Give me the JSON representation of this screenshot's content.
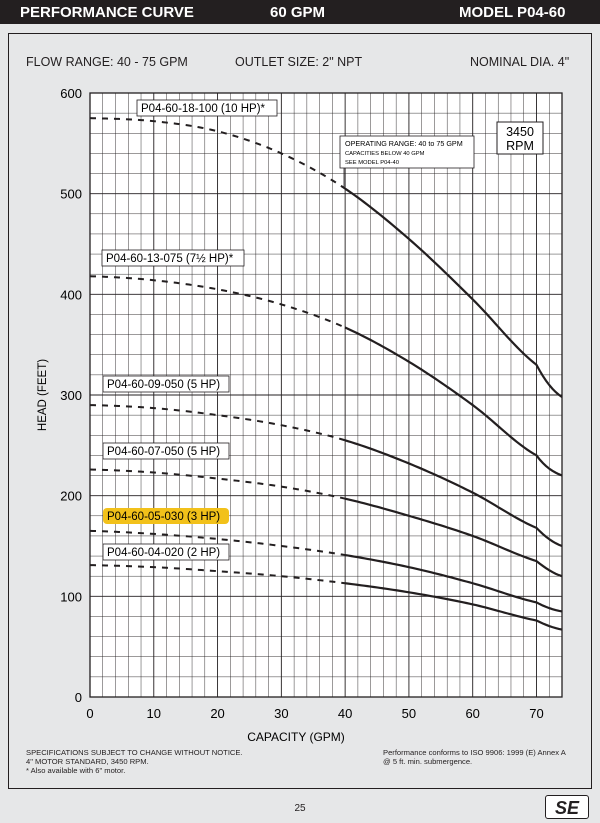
{
  "header": {
    "left": "PERFORMANCE CURVE",
    "center": "60 GPM",
    "right": "MODEL  P04-60"
  },
  "specs": {
    "flow_range": "FLOW RANGE: 40 - 75 GPM",
    "outlet_size": "OUTLET SIZE: 2\" NPT",
    "nominal_dia": "NOMINAL DIA. 4\""
  },
  "rpm_box": {
    "line1": "3450",
    "line2": "RPM"
  },
  "operating_note": [
    "OPERATING RANGE: 40 to 75 GPM",
    "CAPACITIES BELOW 40 GPM",
    "SEE MODEL P04-40"
  ],
  "footer": {
    "left": "SPECIFICATIONS SUBJECT TO CHANGE WITHOUT NOTICE.\n4\" MOTOR STANDARD, 3450 RPM.\n* Also available with 6\" motor.",
    "right": "Performance conforms to ISO 9906: 1999 (E) Annex A\n@ 5 ft. min. submergence.",
    "page_number": "25",
    "logo": "SE"
  },
  "colors": {
    "highlight": "#f2c11a",
    "curve": "#231f20",
    "grid": "#231f20",
    "background": "#e6e7e8"
  },
  "chart_data": {
    "type": "line",
    "title": "",
    "xlabel": "CAPACITY (GPM)",
    "ylabel": "HEAD (FEET)",
    "xlim": [
      0,
      74
    ],
    "ylim": [
      0,
      600
    ],
    "xticks": [
      0,
      10,
      20,
      30,
      40,
      50,
      60,
      70
    ],
    "yticks": [
      0,
      100,
      200,
      300,
      400,
      500,
      600
    ],
    "grid": true,
    "operating_range_start": 40,
    "series": [
      {
        "name": "P04-60-18-100 (10 HP)*",
        "highlight": false,
        "x": [
          0,
          10,
          20,
          30,
          40,
          50,
          60,
          70,
          74
        ],
        "y": [
          575,
          572,
          562,
          540,
          505,
          455,
          395,
          330,
          298
        ]
      },
      {
        "name": "P04-60-13-075 (7½ HP)*",
        "highlight": false,
        "x": [
          0,
          10,
          20,
          30,
          40,
          50,
          60,
          70,
          74
        ],
        "y": [
          418,
          414,
          405,
          390,
          367,
          333,
          290,
          240,
          220
        ]
      },
      {
        "name": "P04-60-09-050 (5 HP)",
        "highlight": false,
        "x": [
          0,
          10,
          20,
          30,
          40,
          50,
          60,
          70,
          74
        ],
        "y": [
          290,
          287,
          280,
          270,
          255,
          232,
          203,
          168,
          150
        ]
      },
      {
        "name": "P04-60-07-050 (5 HP)",
        "highlight": false,
        "x": [
          0,
          10,
          20,
          30,
          40,
          50,
          60,
          70,
          74
        ],
        "y": [
          226,
          223,
          217,
          209,
          197,
          180,
          160,
          135,
          120
        ]
      },
      {
        "name": "P04-60-05-030 (3 HP)",
        "highlight": true,
        "x": [
          0,
          10,
          20,
          30,
          40,
          50,
          60,
          70,
          74
        ],
        "y": [
          165,
          162,
          157,
          150,
          141,
          129,
          113,
          94,
          85
        ]
      },
      {
        "name": "P04-60-04-020 (2 HP)",
        "highlight": false,
        "x": [
          0,
          10,
          20,
          30,
          40,
          50,
          60,
          70,
          74
        ],
        "y": [
          131,
          129,
          125,
          120,
          113,
          104,
          92,
          76,
          67
        ]
      }
    ]
  }
}
